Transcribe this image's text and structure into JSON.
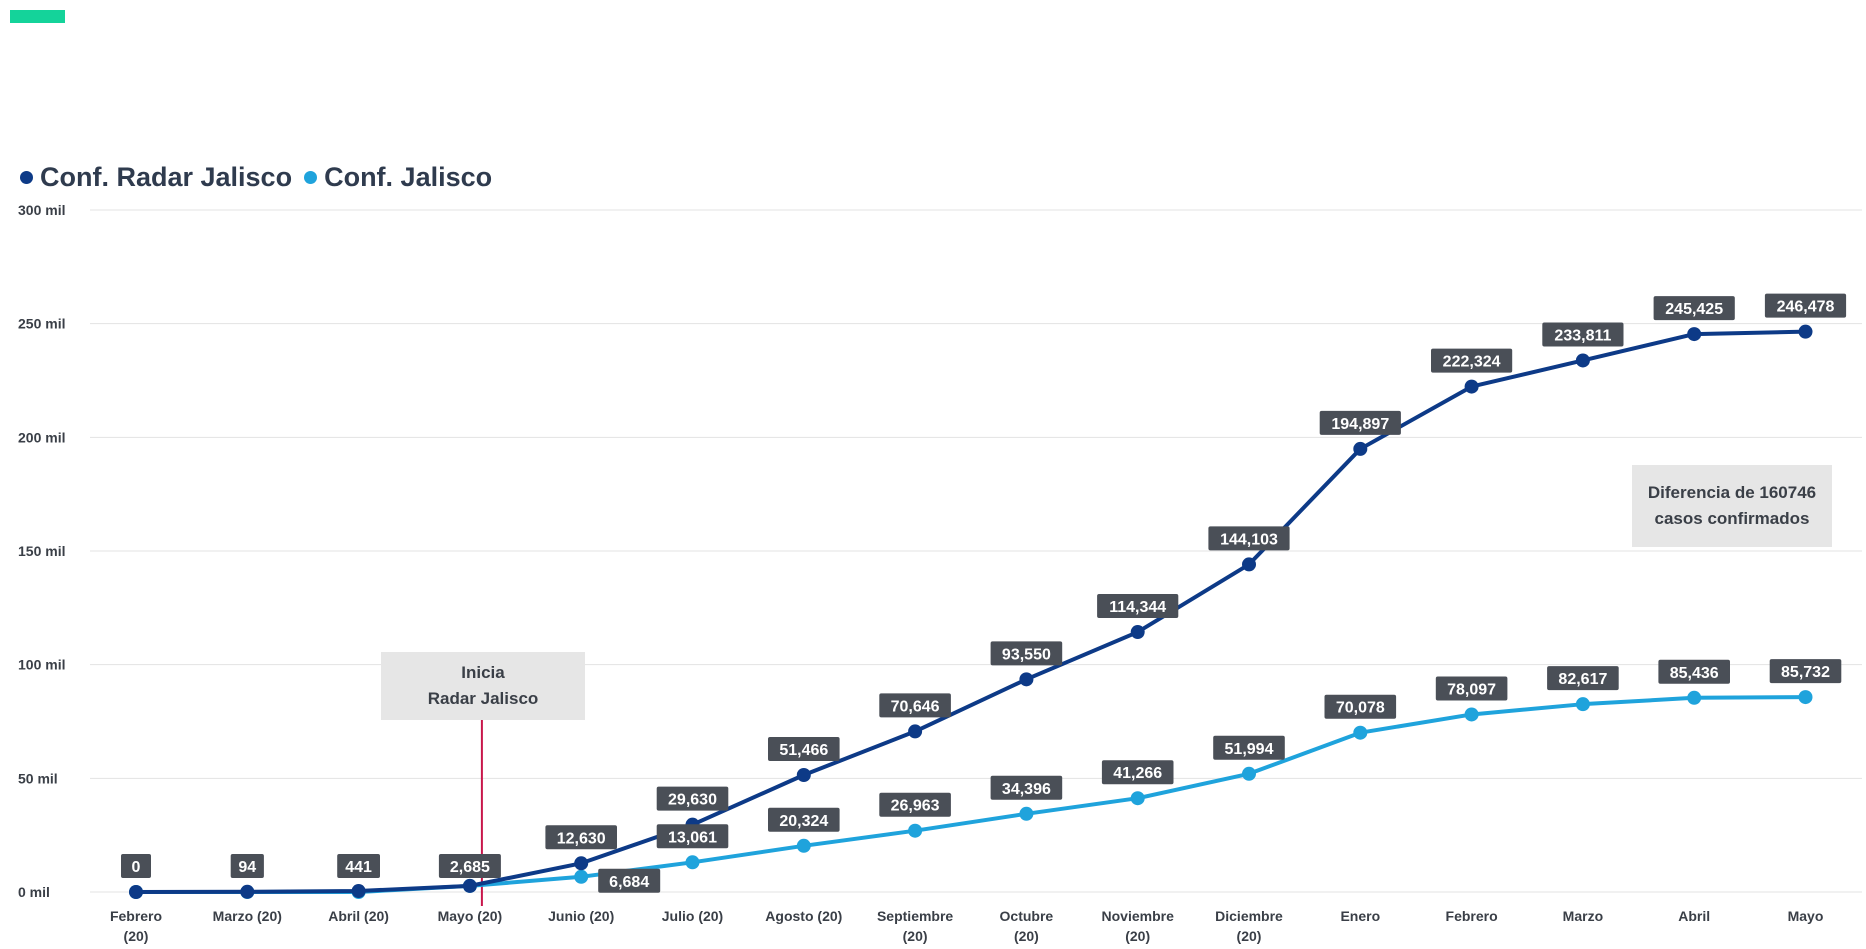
{
  "chart_data": {
    "type": "line",
    "title": "",
    "xlabel": "",
    "ylabel": "",
    "categories": [
      "Febrero (20)",
      "Marzo (20)",
      "Abril (20)",
      "Mayo (20)",
      "Junio (20)",
      "Julio (20)",
      "Agosto (20)",
      "Septiembre (20)",
      "Octubre (20)",
      "Noviembre (20)",
      "Diciembre (20)",
      "Enero",
      "Febrero",
      "Marzo",
      "Abril",
      "Mayo"
    ],
    "category_lines": [
      [
        "Febrero",
        "(20)"
      ],
      [
        "Marzo (20)"
      ],
      [
        "Abril (20)"
      ],
      [
        "Mayo (20)"
      ],
      [
        "Junio (20)"
      ],
      [
        "Julio (20)"
      ],
      [
        "Agosto (20)"
      ],
      [
        "Septiembre",
        "(20)"
      ],
      [
        "Octubre",
        "(20)"
      ],
      [
        "Noviembre",
        "(20)"
      ],
      [
        "Diciembre",
        "(20)"
      ],
      [
        "Enero"
      ],
      [
        "Febrero"
      ],
      [
        "Marzo"
      ],
      [
        "Abril"
      ],
      [
        "Mayo"
      ]
    ],
    "y_ticks": [
      0,
      50000,
      100000,
      150000,
      200000,
      250000,
      300000
    ],
    "y_tick_labels": [
      "0 mil",
      "50 mil",
      "100 mil",
      "150 mil",
      "200 mil",
      "250 mil",
      "300 mil"
    ],
    "ylim": [
      0,
      300000
    ],
    "grid": true,
    "legend_position": "top-left",
    "series": [
      {
        "name": "Conf. Radar Jalisco",
        "color": "#0d3a87",
        "values": [
          0,
          94,
          441,
          2685,
          12630,
          29630,
          51466,
          70646,
          93550,
          114344,
          144103,
          194897,
          222324,
          233811,
          245425,
          246478
        ],
        "labels": [
          "0",
          "94",
          "441",
          "2,685",
          "12,630",
          "29,630",
          "51,466",
          "70,646",
          "93,550",
          "114,344",
          "144,103",
          "194,897",
          "222,324",
          "233,811",
          "245,425",
          "246,478"
        ]
      },
      {
        "name": "Conf. Jalisco",
        "color": "#1fa3dc",
        "values": [
          0,
          0,
          0,
          2685,
          6684,
          13061,
          20324,
          26963,
          34396,
          41266,
          51994,
          70078,
          78097,
          82617,
          85436,
          85732
        ],
        "labels": [
          "",
          "",
          "",
          "",
          "6,684",
          "13,061",
          "20,324",
          "26,963",
          "34,396",
          "41,266",
          "51,994",
          "70,078",
          "78,097",
          "82,617",
          "85,436",
          "85,732"
        ]
      }
    ],
    "annotations": [
      {
        "lines": [
          "Inicia",
          "Radar Jalisco"
        ],
        "category_index": 3
      },
      {
        "lines": [
          "Diferencia de 160746",
          "casos confirmados"
        ]
      }
    ]
  },
  "colors": {
    "accent": "#14d39a",
    "label_bg": "#4a4f57",
    "annotation_bg": "#e6e6e6",
    "marker_line": "#c8164b",
    "axis_text": "#3a3f47",
    "grid": "#e3e3e3"
  }
}
